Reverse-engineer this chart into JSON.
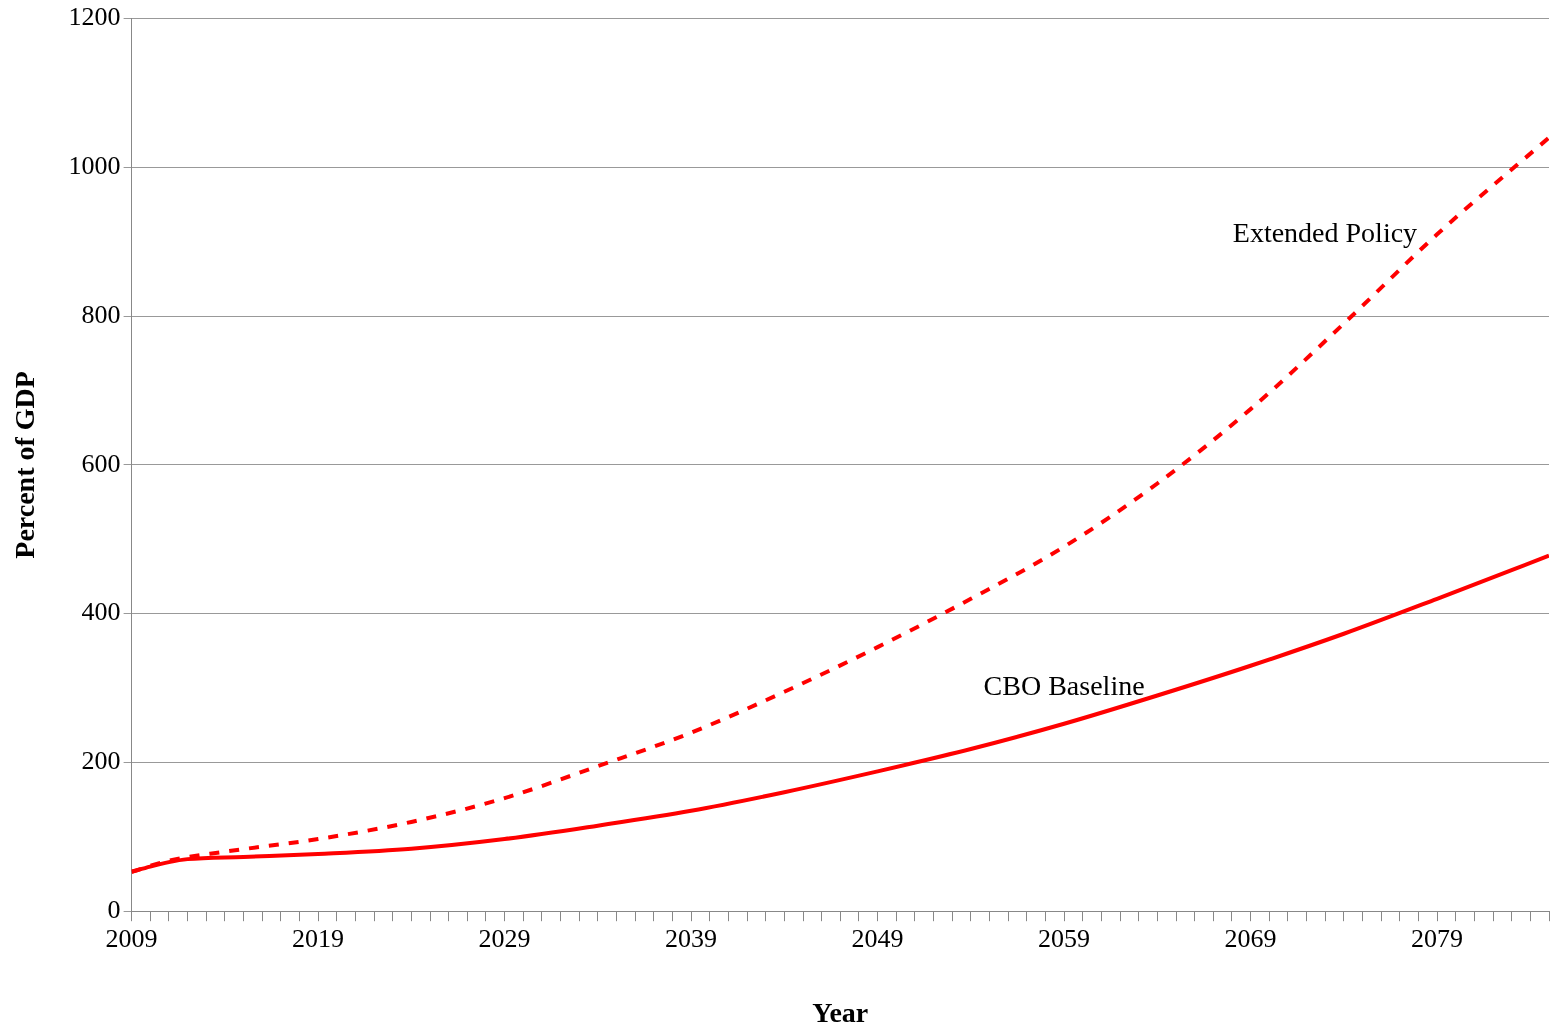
{
  "chart_data": {
    "type": "line",
    "xlabel": "Year",
    "ylabel": "Percent of GDP",
    "xlim": [
      2009,
      2085
    ],
    "xticks": [
      {
        "value": 2009,
        "label": "2009"
      },
      {
        "value": 2010,
        "label": null
      },
      {
        "value": 2011,
        "label": null
      },
      {
        "value": 2012,
        "label": null
      },
      {
        "value": 2013,
        "label": null
      },
      {
        "value": 2014,
        "label": null
      },
      {
        "value": 2015,
        "label": null
      },
      {
        "value": 2016,
        "label": null
      },
      {
        "value": 2017,
        "label": null
      },
      {
        "value": 2018,
        "label": null
      },
      {
        "value": 2019,
        "label": "2019"
      },
      {
        "value": 2020,
        "label": null
      },
      {
        "value": 2021,
        "label": null
      },
      {
        "value": 2022,
        "label": null
      },
      {
        "value": 2023,
        "label": null
      },
      {
        "value": 2024,
        "label": null
      },
      {
        "value": 2025,
        "label": null
      },
      {
        "value": 2026,
        "label": null
      },
      {
        "value": 2027,
        "label": null
      },
      {
        "value": 2028,
        "label": null
      },
      {
        "value": 2029,
        "label": "2029"
      },
      {
        "value": 2030,
        "label": null
      },
      {
        "value": 2031,
        "label": null
      },
      {
        "value": 2032,
        "label": null
      },
      {
        "value": 2033,
        "label": null
      },
      {
        "value": 2034,
        "label": null
      },
      {
        "value": 2035,
        "label": null
      },
      {
        "value": 2036,
        "label": null
      },
      {
        "value": 2037,
        "label": null
      },
      {
        "value": 2038,
        "label": null
      },
      {
        "value": 2039,
        "label": "2039"
      },
      {
        "value": 2040,
        "label": null
      },
      {
        "value": 2041,
        "label": null
      },
      {
        "value": 2042,
        "label": null
      },
      {
        "value": 2043,
        "label": null
      },
      {
        "value": 2044,
        "label": null
      },
      {
        "value": 2045,
        "label": null
      },
      {
        "value": 2046,
        "label": null
      },
      {
        "value": 2047,
        "label": null
      },
      {
        "value": 2048,
        "label": null
      },
      {
        "value": 2049,
        "label": "2049"
      },
      {
        "value": 2050,
        "label": null
      },
      {
        "value": 2051,
        "label": null
      },
      {
        "value": 2052,
        "label": null
      },
      {
        "value": 2053,
        "label": null
      },
      {
        "value": 2054,
        "label": null
      },
      {
        "value": 2055,
        "label": null
      },
      {
        "value": 2056,
        "label": null
      },
      {
        "value": 2057,
        "label": null
      },
      {
        "value": 2058,
        "label": null
      },
      {
        "value": 2059,
        "label": "2059"
      },
      {
        "value": 2060,
        "label": null
      },
      {
        "value": 2061,
        "label": null
      },
      {
        "value": 2062,
        "label": null
      },
      {
        "value": 2063,
        "label": null
      },
      {
        "value": 2064,
        "label": null
      },
      {
        "value": 2065,
        "label": null
      },
      {
        "value": 2066,
        "label": null
      },
      {
        "value": 2067,
        "label": null
      },
      {
        "value": 2068,
        "label": null
      },
      {
        "value": 2069,
        "label": "2069"
      },
      {
        "value": 2070,
        "label": null
      },
      {
        "value": 2071,
        "label": null
      },
      {
        "value": 2072,
        "label": null
      },
      {
        "value": 2073,
        "label": null
      },
      {
        "value": 2074,
        "label": null
      },
      {
        "value": 2075,
        "label": null
      },
      {
        "value": 2076,
        "label": null
      },
      {
        "value": 2077,
        "label": null
      },
      {
        "value": 2078,
        "label": null
      },
      {
        "value": 2079,
        "label": "2079"
      },
      {
        "value": 2080,
        "label": null
      },
      {
        "value": 2081,
        "label": null
      },
      {
        "value": 2082,
        "label": null
      },
      {
        "value": 2083,
        "label": null
      },
      {
        "value": 2084,
        "label": null
      },
      {
        "value": 2085,
        "label": null
      }
    ],
    "ylim": [
      0,
      1200
    ],
    "yticks": [
      0,
      200,
      400,
      600,
      800,
      1000,
      1200
    ],
    "grid": "y",
    "legend": false,
    "marker": "none",
    "series": [
      {
        "name": "Extended Policy",
        "color": "#ff0000",
        "line_style": "dashed",
        "x": [
          2009,
          2011,
          2014,
          2019,
          2024,
          2029,
          2034,
          2039,
          2044,
          2049,
          2054,
          2059,
          2064,
          2069,
          2074,
          2079,
          2085
        ],
        "values": [
          53,
          68,
          80,
          97,
          120,
          152,
          195,
          240,
          295,
          355,
          420,
          490,
          575,
          675,
          790,
          910,
          1040
        ]
      },
      {
        "name": "CBO Baseline",
        "color": "#ff0000",
        "line_style": "solid",
        "x": [
          2009,
          2010,
          2011,
          2012,
          2015,
          2019,
          2024,
          2029,
          2034,
          2039,
          2044,
          2049,
          2054,
          2059,
          2064,
          2069,
          2074,
          2079,
          2085
        ],
        "values": [
          53,
          60,
          66,
          70,
          73,
          77,
          84,
          97,
          115,
          135,
          160,
          188,
          218,
          252,
          290,
          330,
          373,
          420,
          478
        ]
      }
    ]
  }
}
